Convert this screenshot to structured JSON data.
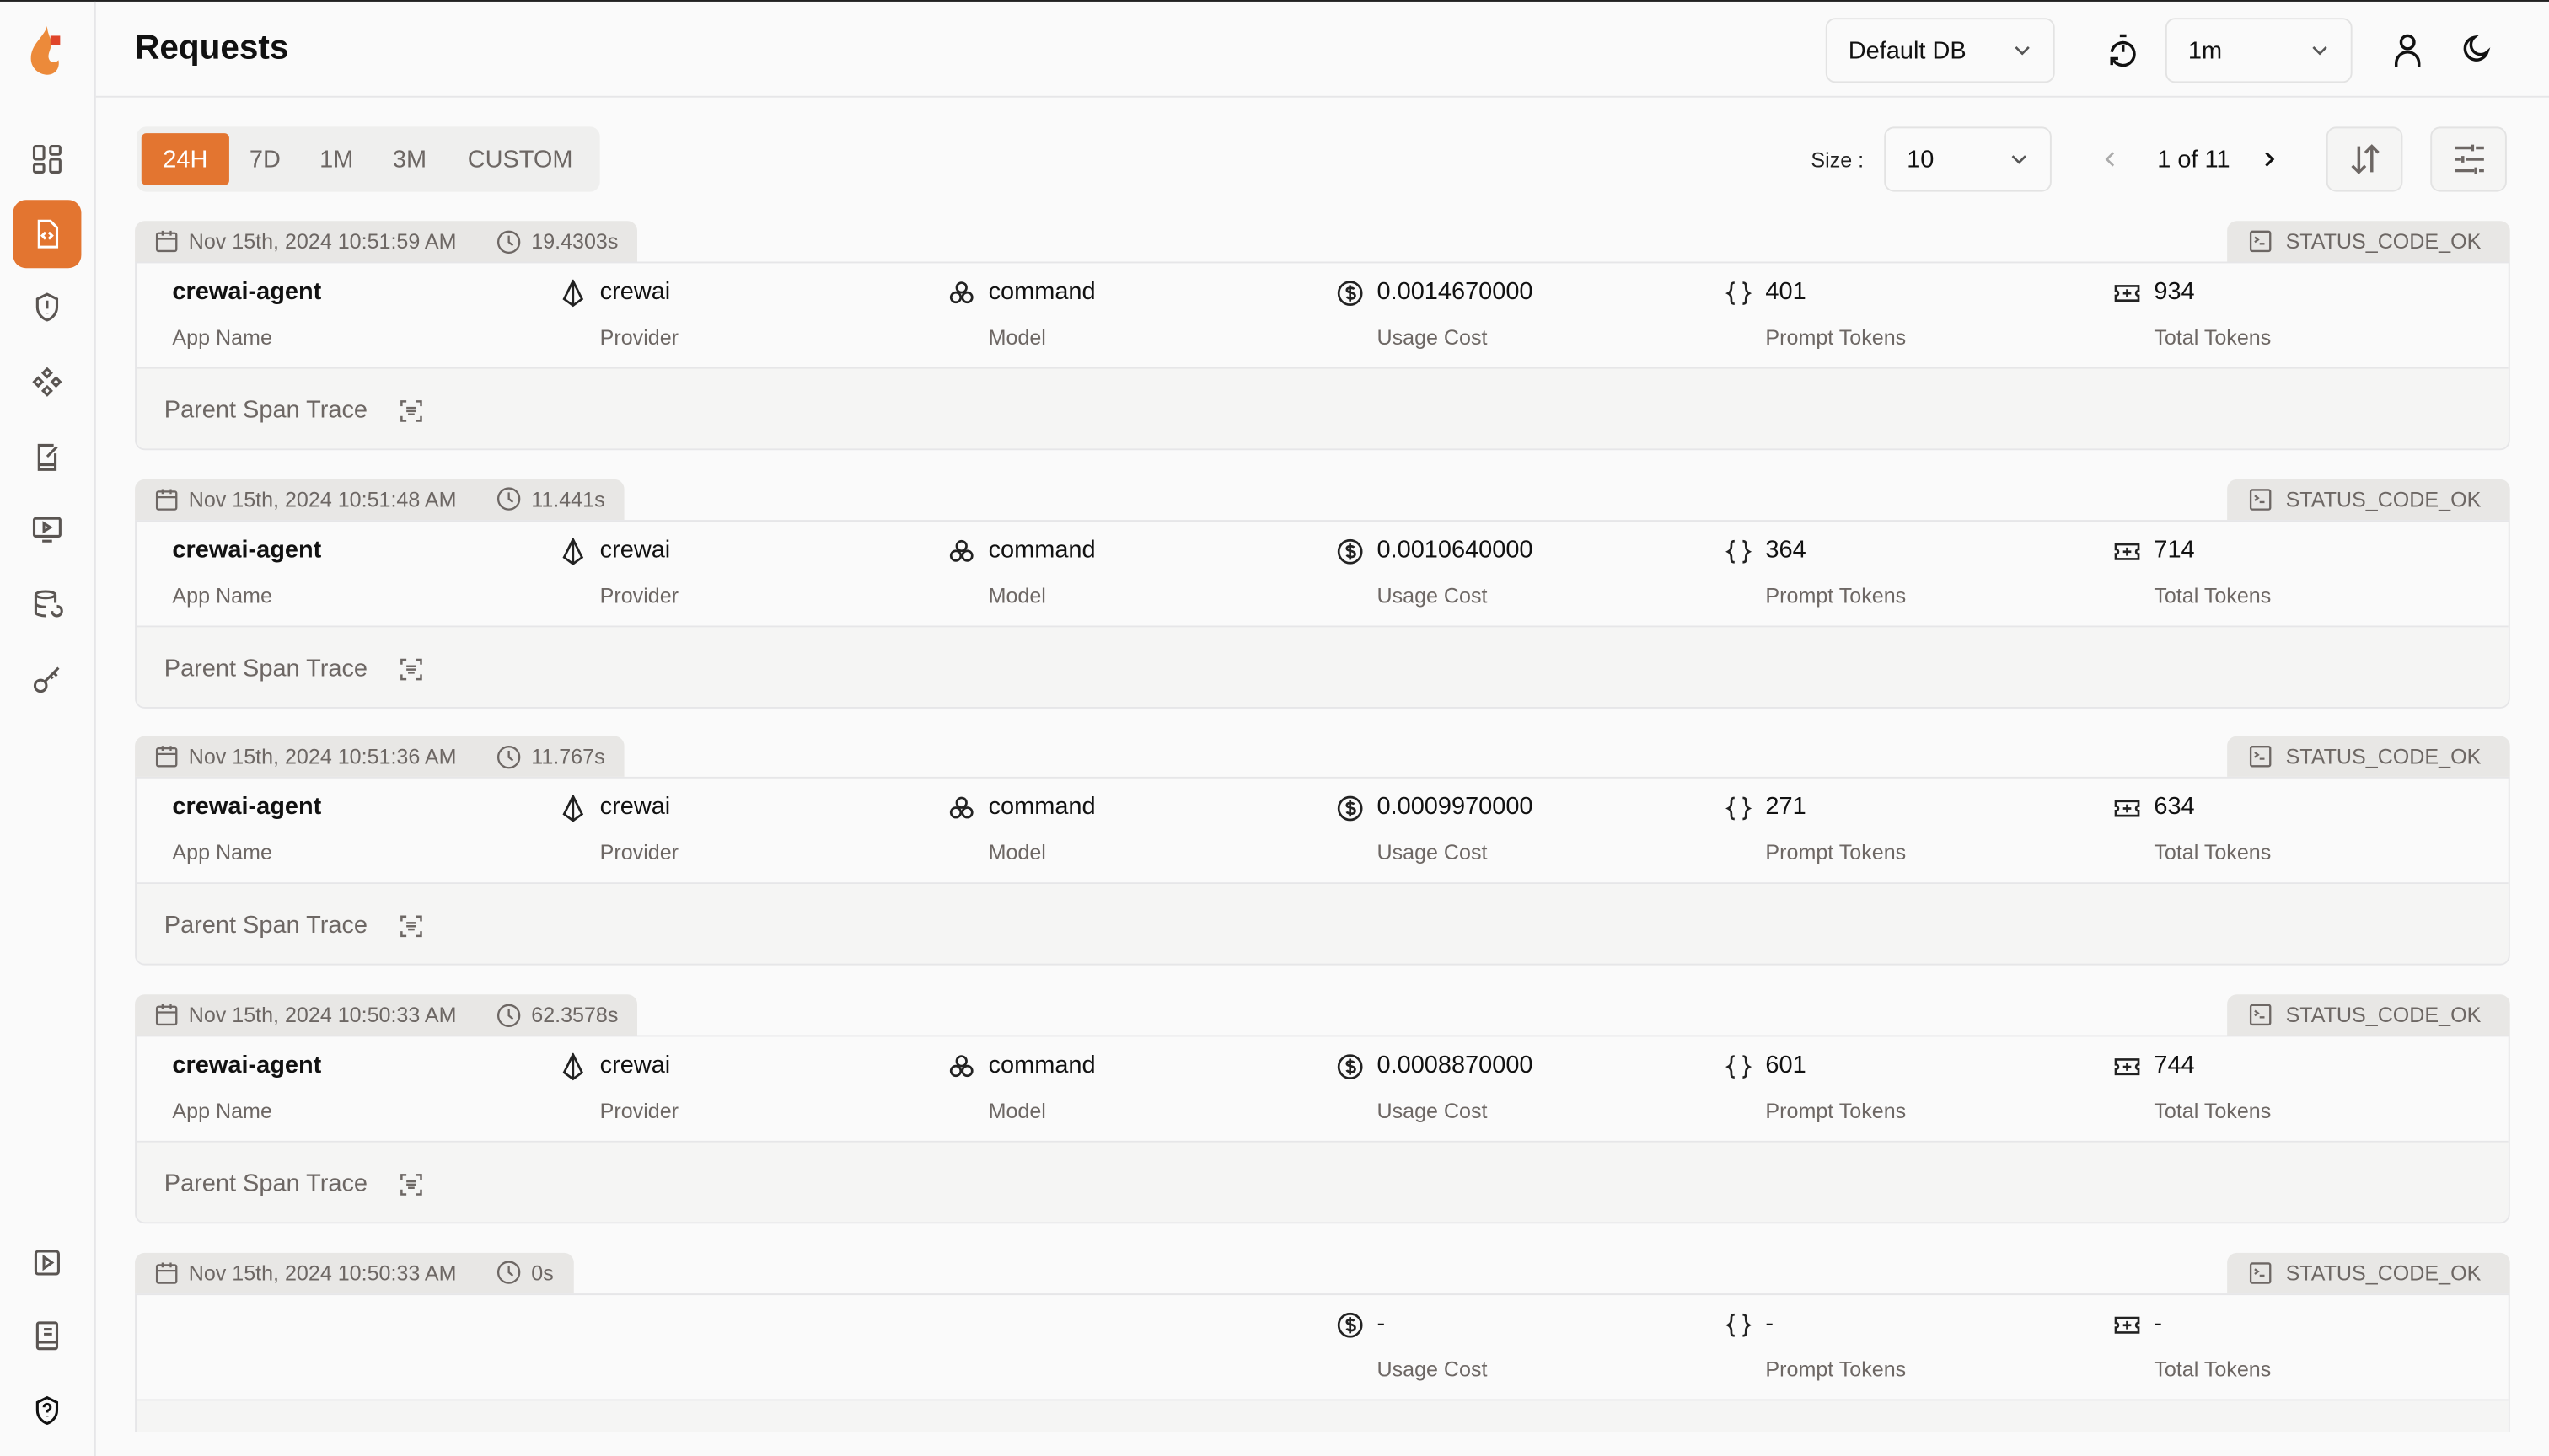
{
  "header": {
    "title": "Requests",
    "db_select": "Default DB",
    "refresh_select": "1m"
  },
  "sidebar": {
    "items": [
      "dashboard",
      "requests",
      "guardrails",
      "prompts",
      "evaluations",
      "openground",
      "database-config",
      "api-keys"
    ],
    "bottom_items": [
      "demo",
      "docs",
      "help"
    ],
    "active": "requests",
    "accent": "#e37530"
  },
  "filters": {
    "tabs": [
      "24H",
      "7D",
      "1M",
      "3M",
      "CUSTOM"
    ],
    "active_tab": "24H"
  },
  "pagination": {
    "size_label": "Size :",
    "size": "10",
    "page_text": "1 of 11"
  },
  "labels": {
    "app_name": "App Name",
    "provider": "Provider",
    "model": "Model",
    "usage_cost": "Usage Cost",
    "prompt_tokens": "Prompt Tokens",
    "total_tokens": "Total Tokens",
    "parent_span_trace": "Parent Span Trace"
  },
  "requests": [
    {
      "timestamp": "Nov 15th, 2024 10:51:59 AM",
      "duration": "19.4303s",
      "status": "STATUS_CODE_OK",
      "app_name": "crewai-agent",
      "provider": "crewai",
      "model": "command",
      "usage_cost": "0.0014670000",
      "prompt_tokens": "401",
      "total_tokens": "934"
    },
    {
      "timestamp": "Nov 15th, 2024 10:51:48 AM",
      "duration": "11.441s",
      "status": "STATUS_CODE_OK",
      "app_name": "crewai-agent",
      "provider": "crewai",
      "model": "command",
      "usage_cost": "0.0010640000",
      "prompt_tokens": "364",
      "total_tokens": "714"
    },
    {
      "timestamp": "Nov 15th, 2024 10:51:36 AM",
      "duration": "11.767s",
      "status": "STATUS_CODE_OK",
      "app_name": "crewai-agent",
      "provider": "crewai",
      "model": "command",
      "usage_cost": "0.0009970000",
      "prompt_tokens": "271",
      "total_tokens": "634"
    },
    {
      "timestamp": "Nov 15th, 2024 10:50:33 AM",
      "duration": "62.3578s",
      "status": "STATUS_CODE_OK",
      "app_name": "crewai-agent",
      "provider": "crewai",
      "model": "command",
      "usage_cost": "0.0008870000",
      "prompt_tokens": "601",
      "total_tokens": "744"
    },
    {
      "timestamp": "Nov 15th, 2024 10:50:33 AM",
      "duration": "0s",
      "status": "STATUS_CODE_OK",
      "usage_cost": "-",
      "prompt_tokens": "-",
      "total_tokens": "-"
    }
  ]
}
